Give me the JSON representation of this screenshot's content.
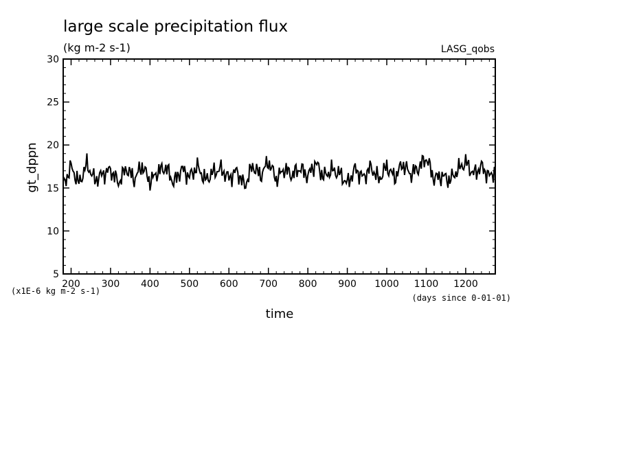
{
  "chart_data": {
    "type": "line",
    "title": "large scale precipitation flux",
    "units": "(kg m-2 s-1)",
    "dataset": "LASG_qobs",
    "xlabel": "time",
    "x_units": "(days since 0-01-01)",
    "ylabel": "gt_dppn",
    "y_scale_note": "(x1E-6 kg m-2 s-1)",
    "xlim": [
      180,
      1275
    ],
    "ylim": [
      5,
      30
    ],
    "x_ticks": [
      200,
      300,
      400,
      500,
      600,
      700,
      800,
      900,
      1000,
      1100,
      1200
    ],
    "y_ticks": [
      5,
      10,
      15,
      20,
      25,
      30
    ],
    "x_minor_step": 20,
    "y_minor_step": 1,
    "grid": false,
    "line_color": "#000000",
    "series": [
      {
        "x": [
          180,
          200,
          220,
          240,
          260,
          280,
          300,
          320,
          340,
          360,
          380,
          400,
          420,
          440,
          460,
          480,
          500,
          520,
          540,
          560,
          580,
          600,
          620,
          640,
          660,
          680,
          700,
          720,
          740,
          760,
          780,
          800,
          820,
          840,
          860,
          880,
          900,
          920,
          940,
          960,
          980,
          1000,
          1020,
          1040,
          1060,
          1080,
          1100,
          1120,
          1140,
          1160,
          1180,
          1200,
          1220,
          1240,
          1260,
          1275
        ],
        "y": [
          15.2,
          17.5,
          15.5,
          17.8,
          15.9,
          16.6,
          17.1,
          15.6,
          17.3,
          16.0,
          17.6,
          15.7,
          16.9,
          17.4,
          15.6,
          17.2,
          16.3,
          17.5,
          15.9,
          16.8,
          17.2,
          16.1,
          17.0,
          15.2,
          17.6,
          16.4,
          18.1,
          16.0,
          17.2,
          16.5,
          17.3,
          16.4,
          17.9,
          16.3,
          17.1,
          16.7,
          15.5,
          17.2,
          16.2,
          17.4,
          16.0,
          17.5,
          16.2,
          17.8,
          16.6,
          17.3,
          18.5,
          16.1,
          16.4,
          15.9,
          17.1,
          18.0,
          16.6,
          17.5,
          16.3,
          17.1
        ]
      }
    ]
  }
}
